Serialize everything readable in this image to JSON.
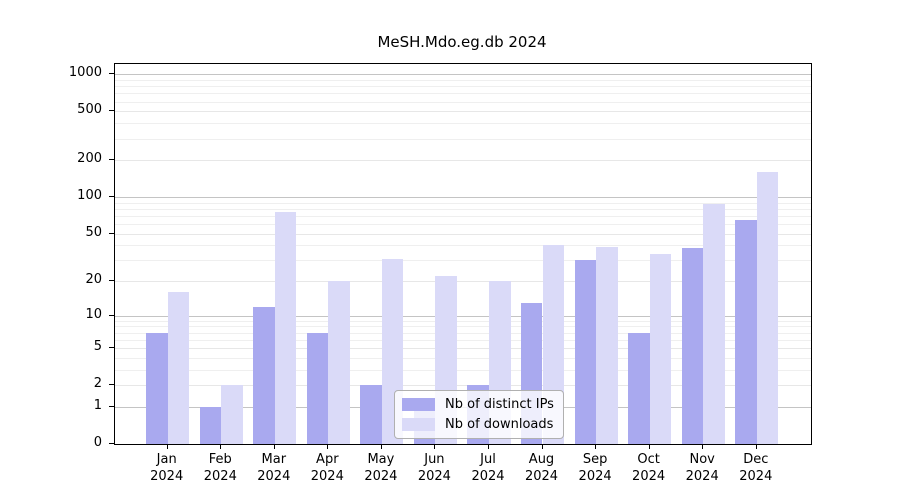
{
  "title": "MeSH.Mdo.eg.db 2024",
  "colors": {
    "distinct_ips": "#a9a9ef",
    "downloads": "#dadaf8",
    "grid_decade": "#c4c4c4",
    "grid_minor": "#efefef",
    "legend_border": "#b0b0b0"
  },
  "legend": {
    "position": "lower center",
    "items": [
      {
        "label": "Nb of distinct IPs",
        "color_key": "distinct_ips"
      },
      {
        "label": "Nb of downloads",
        "color_key": "downloads"
      }
    ]
  },
  "chart_data": {
    "type": "bar",
    "title": "MeSH.Mdo.eg.db 2024",
    "categories": [
      "Jan 2024",
      "Feb 2024",
      "Mar 2024",
      "Apr 2024",
      "May 2024",
      "Jun 2024",
      "Jul 2024",
      "Aug 2024",
      "Sep 2024",
      "Oct 2024",
      "Nov 2024",
      "Dec 2024"
    ],
    "series": [
      {
        "name": "Nb of distinct IPs",
        "values": [
          7,
          1,
          12,
          7,
          2,
          1,
          2,
          13,
          30,
          7,
          38,
          65
        ]
      },
      {
        "name": "Nb of downloads",
        "values": [
          16,
          2,
          75,
          20,
          31,
          22,
          20,
          40,
          39,
          34,
          88,
          160
        ]
      }
    ],
    "xlabel": "",
    "ylabel": "",
    "yscale": "log1p",
    "ylim": [
      0,
      1200
    ],
    "ytick_values": [
      0,
      1,
      2,
      5,
      10,
      20,
      50,
      100,
      200,
      500,
      1000
    ],
    "ytick_labels": [
      "0",
      "1",
      "2",
      "5",
      "10",
      "20",
      "50",
      "100",
      "200",
      "500",
      "1000"
    ],
    "grid": "on",
    "legend_position": "lower center"
  }
}
